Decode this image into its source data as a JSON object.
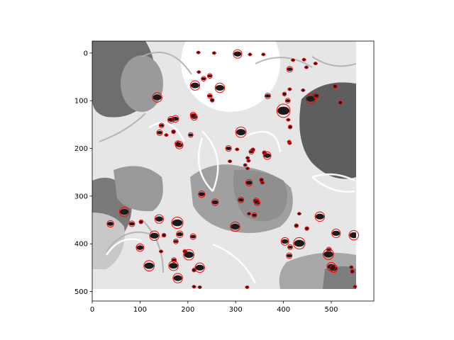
{
  "chart_data": {
    "type": "scatter",
    "title": "",
    "xlabel": "",
    "ylabel": "",
    "xlim": [
      0,
      589
    ],
    "ylim": [
      520,
      -25
    ],
    "y_inverted": true,
    "grid": false,
    "legend": "none",
    "x_ticks": [
      0,
      100,
      200,
      300,
      400,
      500
    ],
    "y_ticks": [
      0,
      100,
      200,
      300,
      400,
      500
    ],
    "image_extent": [
      0,
      550,
      492,
      0
    ],
    "marker": {
      "shape": "circle",
      "fill": "none",
      "color": "#ff0000"
    },
    "background_image": "grayscale photo with dark beetle-like specks over leaf illustrations",
    "points": [
      {
        "x": 222,
        "y": -1,
        "r": 2
      },
      {
        "x": 255,
        "y": 0,
        "r": 2
      },
      {
        "x": 304,
        "y": 2,
        "r": 9
      },
      {
        "x": 330,
        "y": 3,
        "r": 3
      },
      {
        "x": 358,
        "y": 3,
        "r": 3
      },
      {
        "x": 420,
        "y": 15,
        "r": 2
      },
      {
        "x": 443,
        "y": 14,
        "r": 2
      },
      {
        "x": 413,
        "y": 34,
        "r": 6
      },
      {
        "x": 448,
        "y": 30,
        "r": 3
      },
      {
        "x": 467,
        "y": 22,
        "r": 3
      },
      {
        "x": 223,
        "y": 40,
        "r": 3
      },
      {
        "x": 246,
        "y": 48,
        "r": 5
      },
      {
        "x": 233,
        "y": 54,
        "r": 5
      },
      {
        "x": 215,
        "y": 68,
        "r": 10
      },
      {
        "x": 413,
        "y": 76,
        "r": 2
      },
      {
        "x": 441,
        "y": 78,
        "r": 3
      },
      {
        "x": 468,
        "y": 90,
        "r": 6
      },
      {
        "x": 367,
        "y": 90,
        "r": 6
      },
      {
        "x": 402,
        "y": 86,
        "r": 4
      },
      {
        "x": 409,
        "y": 100,
        "r": 5
      },
      {
        "x": 267,
        "y": 73,
        "r": 10
      },
      {
        "x": 246,
        "y": 90,
        "r": 5
      },
      {
        "x": 251,
        "y": 99,
        "r": 4
      },
      {
        "x": 136,
        "y": 93,
        "r": 10
      },
      {
        "x": 457,
        "y": 96,
        "r": 10
      },
      {
        "x": 508,
        "y": 70,
        "r": 4
      },
      {
        "x": 519,
        "y": 104,
        "r": 4
      },
      {
        "x": 400,
        "y": 121,
        "r": 14
      },
      {
        "x": 410,
        "y": 140,
        "r": 3
      },
      {
        "x": 414,
        "y": 155,
        "r": 4
      },
      {
        "x": 165,
        "y": 140,
        "r": 7
      },
      {
        "x": 174,
        "y": 138,
        "r": 7
      },
      {
        "x": 211,
        "y": 130,
        "r": 6
      },
      {
        "x": 213,
        "y": 134,
        "r": 7
      },
      {
        "x": 145,
        "y": 152,
        "r": 5
      },
      {
        "x": 141,
        "y": 167,
        "r": 6
      },
      {
        "x": 170,
        "y": 165,
        "r": 4
      },
      {
        "x": 155,
        "y": 172,
        "r": 3
      },
      {
        "x": 206,
        "y": 172,
        "r": 5
      },
      {
        "x": 311,
        "y": 166,
        "r": 11
      },
      {
        "x": 179,
        "y": 190,
        "r": 6
      },
      {
        "x": 182,
        "y": 193,
        "r": 8
      },
      {
        "x": 412,
        "y": 186,
        "r": 3
      },
      {
        "x": 413,
        "y": 189,
        "r": 3
      },
      {
        "x": 285,
        "y": 200,
        "r": 6
      },
      {
        "x": 303,
        "y": 202,
        "r": 3
      },
      {
        "x": 336,
        "y": 203,
        "r": 4
      },
      {
        "x": 333,
        "y": 207,
        "r": 5
      },
      {
        "x": 360,
        "y": 209,
        "r": 4
      },
      {
        "x": 366,
        "y": 215,
        "r": 8
      },
      {
        "x": 325,
        "y": 220,
        "r": 3
      },
      {
        "x": 327,
        "y": 226,
        "r": 3
      },
      {
        "x": 320,
        "y": 235,
        "r": 3
      },
      {
        "x": 325,
        "y": 242,
        "r": 3
      },
      {
        "x": 288,
        "y": 227,
        "r": 2
      },
      {
        "x": 328,
        "y": 272,
        "r": 7
      },
      {
        "x": 354,
        "y": 266,
        "r": 4
      },
      {
        "x": 356,
        "y": 272,
        "r": 3
      },
      {
        "x": 229,
        "y": 296,
        "r": 7
      },
      {
        "x": 257,
        "y": 313,
        "r": 7
      },
      {
        "x": 311,
        "y": 308,
        "r": 6
      },
      {
        "x": 343,
        "y": 310,
        "r": 6
      },
      {
        "x": 345,
        "y": 314,
        "r": 6
      },
      {
        "x": 328,
        "y": 337,
        "r": 3
      },
      {
        "x": 339,
        "y": 340,
        "r": 5
      },
      {
        "x": 67,
        "y": 333,
        "r": 10
      },
      {
        "x": 38,
        "y": 358,
        "r": 7
      },
      {
        "x": 83,
        "y": 358,
        "r": 6
      },
      {
        "x": 102,
        "y": 354,
        "r": 4
      },
      {
        "x": 140,
        "y": 348,
        "r": 9
      },
      {
        "x": 178,
        "y": 356,
        "r": 12
      },
      {
        "x": 299,
        "y": 364,
        "r": 10
      },
      {
        "x": 433,
        "y": 337,
        "r": 3
      },
      {
        "x": 476,
        "y": 343,
        "r": 10
      },
      {
        "x": 427,
        "y": 362,
        "r": 4
      },
      {
        "x": 449,
        "y": 368,
        "r": 4
      },
      {
        "x": 510,
        "y": 378,
        "r": 9
      },
      {
        "x": 547,
        "y": 382,
        "r": 10
      },
      {
        "x": 130,
        "y": 383,
        "r": 10
      },
      {
        "x": 150,
        "y": 382,
        "r": 4
      },
      {
        "x": 183,
        "y": 380,
        "r": 7
      },
      {
        "x": 211,
        "y": 385,
        "r": 6
      },
      {
        "x": 175,
        "y": 395,
        "r": 5
      },
      {
        "x": 100,
        "y": 408,
        "r": 8
      },
      {
        "x": 403,
        "y": 395,
        "r": 8
      },
      {
        "x": 433,
        "y": 399,
        "r": 12
      },
      {
        "x": 414,
        "y": 407,
        "r": 5
      },
      {
        "x": 412,
        "y": 425,
        "r": 6
      },
      {
        "x": 495,
        "y": 412,
        "r": 5
      },
      {
        "x": 494,
        "y": 422,
        "r": 11
      },
      {
        "x": 144,
        "y": 416,
        "r": 3
      },
      {
        "x": 194,
        "y": 416,
        "r": 4
      },
      {
        "x": 202,
        "y": 423,
        "r": 11
      },
      {
        "x": 171,
        "y": 434,
        "r": 5
      },
      {
        "x": 119,
        "y": 446,
        "r": 11
      },
      {
        "x": 170,
        "y": 446,
        "r": 10
      },
      {
        "x": 225,
        "y": 450,
        "r": 10
      },
      {
        "x": 213,
        "y": 455,
        "r": 4
      },
      {
        "x": 179,
        "y": 472,
        "r": 10
      },
      {
        "x": 500,
        "y": 448,
        "r": 9
      },
      {
        "x": 505,
        "y": 452,
        "r": 8
      },
      {
        "x": 544,
        "y": 458,
        "r": 4
      },
      {
        "x": 542,
        "y": 449,
        "r": 3
      },
      {
        "x": 213,
        "y": 490,
        "r": 3
      },
      {
        "x": 225,
        "y": 491,
        "r": 3
      },
      {
        "x": 324,
        "y": 491,
        "r": 3
      },
      {
        "x": 550,
        "y": 490,
        "r": 2
      }
    ]
  }
}
